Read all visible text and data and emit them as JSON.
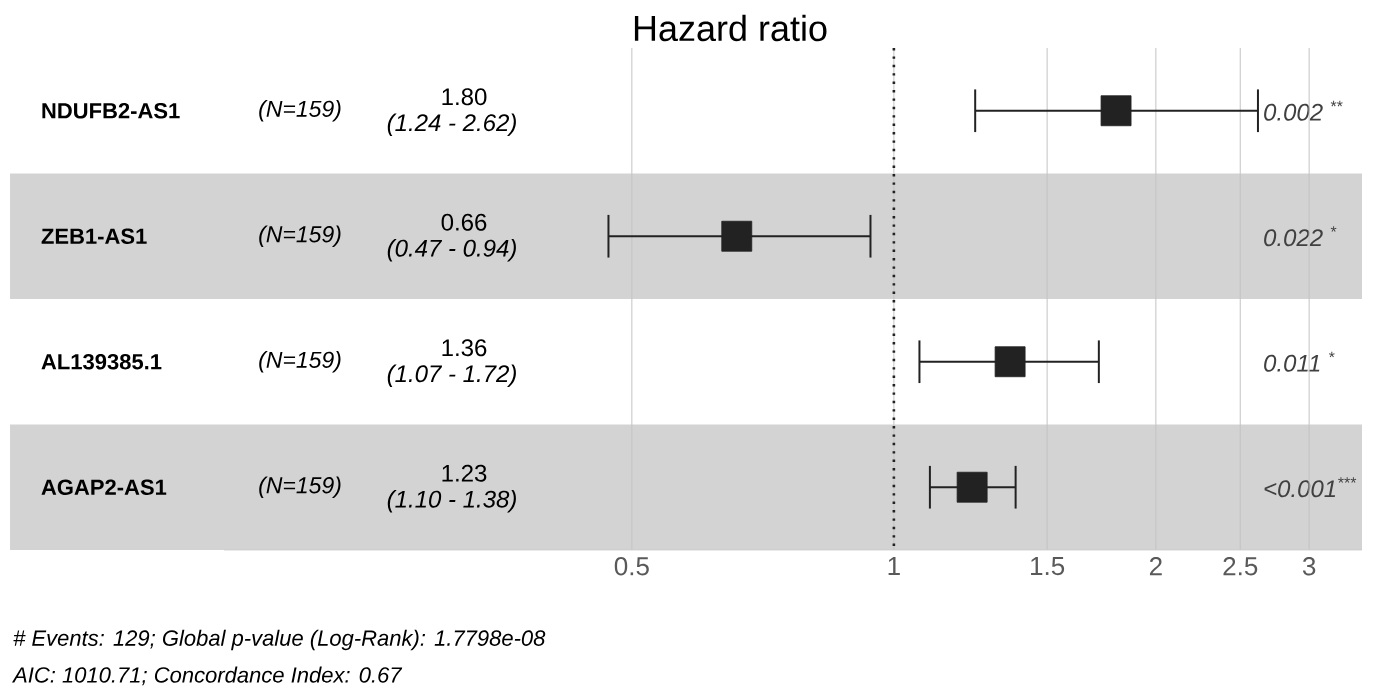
{
  "chart_data": {
    "type": "scatter",
    "orientation": "horizontal",
    "title": "Hazard ratio",
    "categories": [
      "NDUFB2-AS1",
      "ZEB1-AS1",
      "AL139385.1",
      "AGAP2-AS1"
    ],
    "values": [
      1.8,
      0.66,
      1.36,
      1.23
    ],
    "errors": [
      [
        1.24,
        2.62
      ],
      [
        0.47,
        0.94
      ],
      [
        1.07,
        1.72
      ],
      [
        1.1,
        1.38
      ]
    ],
    "color": "#222222",
    "marker": "square",
    "log": "x",
    "xlim": [
      0.17,
      3.45
    ],
    "xticks": [
      0.5,
      1,
      1.5,
      2,
      2.5,
      3
    ],
    "grid": "x",
    "ref_lines": [
      {
        "axis": "x",
        "value": 1,
        "line_style": "dotted",
        "color": "#222222"
      }
    ],
    "annotations": [
      "(N=159)",
      "(N=159)",
      "(N=159)",
      "(N=159)",
      "1.80",
      "0.66",
      "1.36",
      "1.23",
      "(1.24 - 2.62)",
      "(0.47 - 0.94)",
      "(1.07 - 1.72)",
      "(1.10 - 1.38)",
      "0.002 $^{**}$",
      "0.022 $^{*}$",
      "0.011 $^{*}$",
      "<0.001$^{***}$",
      "# Events: 129; Global p-value (Log-Rank): 1.7798e-08",
      "AIC: 1010.71; Concordance Index: 0.67"
    ]
  }
}
